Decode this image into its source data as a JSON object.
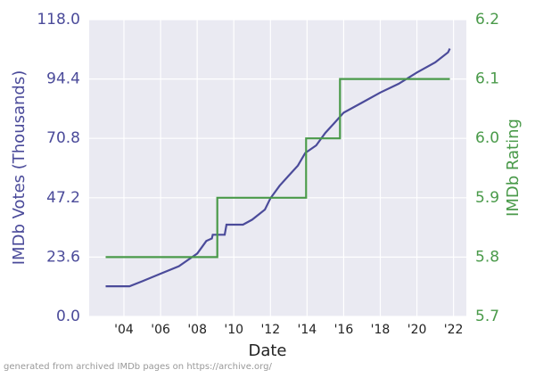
{
  "chart_data": {
    "type": "line",
    "x_label": "Date",
    "y_label": "IMDb Votes (Thousands)",
    "y2_label": "IMDb Rating",
    "footnote": "generated from archived IMDb pages on https://archive.org/",
    "xlim": [
      2002.1,
      2022.7
    ],
    "xticks": [
      {
        "value": 2004,
        "label": "'04"
      },
      {
        "value": 2006,
        "label": "'06"
      },
      {
        "value": 2008,
        "label": "'08"
      },
      {
        "value": 2010,
        "label": "'10"
      },
      {
        "value": 2012,
        "label": "'12"
      },
      {
        "value": 2014,
        "label": "'14"
      },
      {
        "value": 2016,
        "label": "'16"
      },
      {
        "value": 2018,
        "label": "'18"
      },
      {
        "value": 2020,
        "label": "'20"
      },
      {
        "value": 2022,
        "label": "'22"
      }
    ],
    "ylim": [
      0,
      118
    ],
    "yticks": [
      {
        "value": 0,
        "label": "0.0"
      },
      23.6,
      47.2,
      70.8,
      94.4,
      {
        "value": 118,
        "label": "118.0"
      }
    ],
    "y2lim": [
      5.7,
      6.2
    ],
    "y2ticks": [
      5.7,
      5.8,
      5.9,
      {
        "value": 6.0,
        "label": "6.0"
      },
      6.1,
      6.2
    ],
    "grid": true,
    "background": "#eaeaf2",
    "y_color": "#4b4b9a",
    "y2_color": "#4a9a4a",
    "series": [
      {
        "name": "IMDb Votes",
        "color": "#4b4b9a",
        "x": [
          2003.0,
          2004.3,
          2005,
          2006,
          2007,
          2007.5,
          2008,
          2008.5,
          2008.8,
          2008.85,
          2009.5,
          2009.6,
          2010.5,
          2011,
          2011.7,
          2012,
          2012.5,
          2013,
          2013.5,
          2013.9,
          2014.5,
          2015,
          2015.5,
          2016,
          2017,
          2018,
          2019,
          2020,
          2021,
          2021.7,
          2021.8
        ],
        "values": [
          12,
          12,
          14,
          17,
          20,
          22.5,
          25,
          30,
          31,
          32.5,
          32.5,
          36.5,
          36.5,
          38.5,
          42.5,
          47,
          52,
          56,
          60,
          65,
          68,
          73,
          77,
          81,
          85,
          89,
          92.5,
          97,
          101,
          105,
          106.5
        ]
      },
      {
        "name": "IMDb Rating",
        "color": "#4a9a4a",
        "axis": "y2",
        "x": [
          2003,
          2009.1,
          2009.1,
          2013.95,
          2013.95,
          2015.8,
          2015.8,
          2021.8
        ],
        "values": [
          5.8,
          5.8,
          5.9,
          5.9,
          6.0,
          6.0,
          6.1,
          6.1
        ]
      }
    ]
  }
}
